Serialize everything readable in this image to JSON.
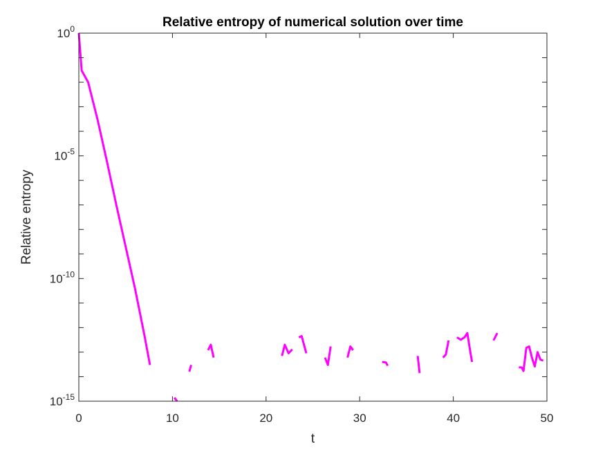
{
  "chart_data": {
    "type": "line",
    "title": "Relative entropy of numerical solution over time",
    "xlabel": "t",
    "ylabel": "Relative entropy",
    "xlim": [
      0,
      50
    ],
    "ylim": [
      1e-15,
      1
    ],
    "yscale": "log",
    "grid": false,
    "box": true,
    "line_color": "#ff00ff",
    "x_ticks": [
      {
        "value": 0,
        "label": "0"
      },
      {
        "value": 10,
        "label": "10"
      },
      {
        "value": 20,
        "label": "20"
      },
      {
        "value": 30,
        "label": "30"
      },
      {
        "value": 40,
        "label": "40"
      },
      {
        "value": 50,
        "label": "50"
      }
    ],
    "y_ticks": [
      {
        "value": 1,
        "base": "10",
        "exp": "0"
      },
      {
        "value": 1e-05,
        "base": "10",
        "exp": "-5"
      },
      {
        "value": 1e-10,
        "base": "10",
        "exp": "-10"
      },
      {
        "value": 1e-15,
        "base": "10",
        "exp": "-15"
      }
    ],
    "series": [
      {
        "segments": [
          [
            [
              0,
              1
            ],
            [
              0.3,
              0.03
            ],
            [
              1,
              0.01
            ],
            [
              2,
              0.0003
            ],
            [
              3,
              6e-06
            ],
            [
              4,
              1e-07
            ],
            [
              5,
              2e-09
            ],
            [
              6,
              4e-11
            ],
            [
              7,
              5e-13
            ],
            [
              7.6,
              3e-14
            ]
          ],
          [
            [
              10.2,
              1.4e-15
            ],
            [
              10.5,
              1e-15
            ]
          ],
          [
            [
              11.8,
              1.6e-14
            ],
            [
              12.0,
              3e-14
            ]
          ],
          [
            [
              13.8,
              1.2e-13
            ],
            [
              14.1,
              2e-13
            ],
            [
              14.4,
              6e-14
            ]
          ],
          [
            [
              21.7,
              7e-14
            ],
            [
              22.0,
              2e-13
            ],
            [
              22.4,
              9e-14
            ],
            [
              22.8,
              1.3e-13
            ]
          ],
          [
            [
              23.5,
              4e-13
            ],
            [
              23.8,
              4.5e-13
            ],
            [
              24.3,
              9e-14
            ]
          ],
          [
            [
              26.3,
              6e-14
            ],
            [
              26.6,
              3e-14
            ],
            [
              26.9,
              1.7e-13
            ]
          ],
          [
            [
              28.7,
              6e-14
            ],
            [
              29.0,
              1.7e-13
            ],
            [
              29.3,
              1.2e-13
            ]
          ],
          [
            [
              32.4,
              4e-14
            ],
            [
              32.8,
              3.8e-14
            ],
            [
              33.0,
              2.8e-14
            ]
          ],
          [
            [
              36.2,
              7e-14
            ],
            [
              36.4,
              1.4e-14
            ]
          ],
          [
            [
              38.9,
              6e-14
            ],
            [
              39.2,
              8e-14
            ],
            [
              39.5,
              3e-13
            ]
          ],
          [
            [
              40.4,
              4e-13
            ],
            [
              40.8,
              3.2e-13
            ],
            [
              41.2,
              4e-13
            ],
            [
              41.5,
              6e-13
            ],
            [
              41.8,
              1.1e-13
            ],
            [
              42.0,
              4e-14
            ]
          ],
          [
            [
              44.3,
              3e-13
            ],
            [
              44.7,
              6e-13
            ]
          ],
          [
            [
              47.0,
              2.4e-14
            ],
            [
              47.3,
              2.4e-14
            ],
            [
              47.5,
              1.7e-14
            ],
            [
              47.8,
              1.5e-13
            ],
            [
              48.1,
              1.7e-13
            ],
            [
              48.4,
              6e-14
            ],
            [
              48.7,
              2.6e-14
            ],
            [
              49.0,
              1e-13
            ],
            [
              49.3,
              5e-14
            ],
            [
              49.6,
              4.5e-14
            ]
          ]
        ]
      }
    ]
  }
}
